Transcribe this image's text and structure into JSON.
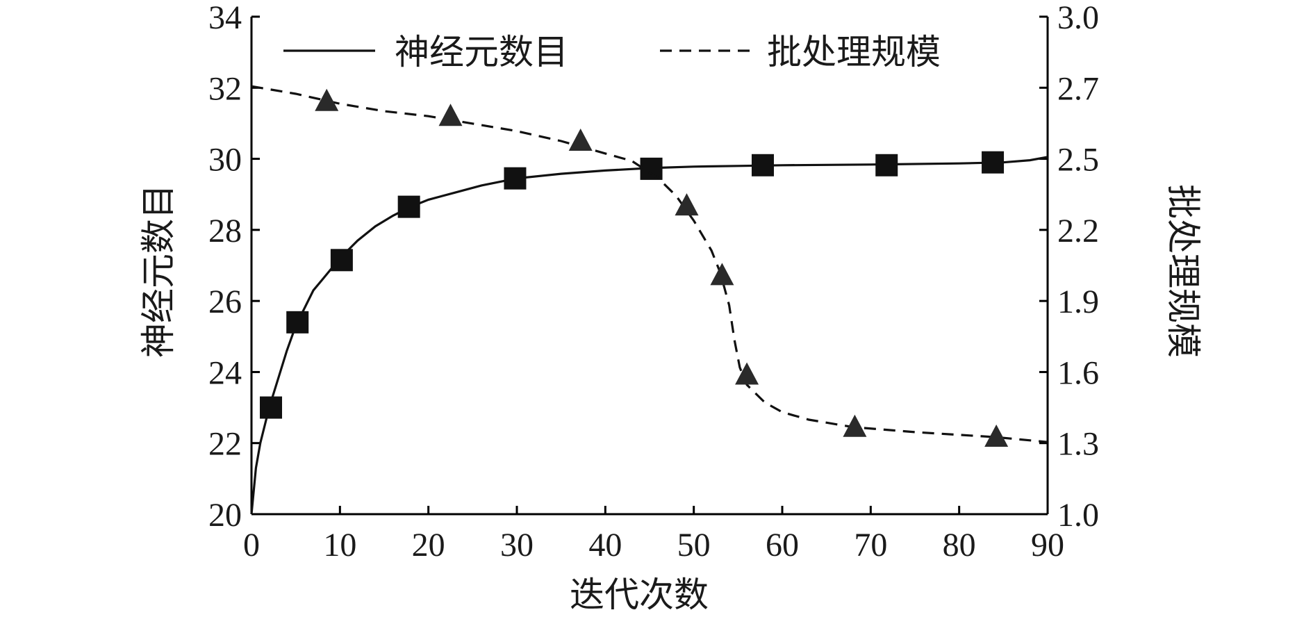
{
  "chart_data": {
    "type": "line",
    "xlabel": "迭代次数",
    "ylabel_left": "神经元数目",
    "ylabel_right": "批处理规模",
    "xlim": [
      0,
      90
    ],
    "ylim_left": [
      20,
      34
    ],
    "ylim_right": [
      1.0,
      3.0
    ],
    "x_ticks": [
      0,
      10,
      20,
      30,
      40,
      50,
      60,
      70,
      80,
      90
    ],
    "y_left_ticks": [
      20,
      22,
      24,
      26,
      28,
      30,
      32,
      34
    ],
    "y_right_ticks": [
      "1.0",
      "1.3",
      "1.6",
      "1.9",
      "2.2",
      "2.5",
      "2.7",
      "3.0"
    ],
    "legend_position": "top",
    "grid": false,
    "series": [
      {
        "name": "神经元数目",
        "axis": "left",
        "style": "solid",
        "marker": "square",
        "color": "#111111",
        "curve": [
          [
            0,
            20.0
          ],
          [
            0.5,
            21.3
          ],
          [
            1,
            22.0
          ],
          [
            2,
            23.0
          ],
          [
            3,
            23.8
          ],
          [
            4,
            24.6
          ],
          [
            5,
            25.3
          ],
          [
            6,
            25.8
          ],
          [
            7,
            26.3
          ],
          [
            8,
            26.6
          ],
          [
            9,
            26.9
          ],
          [
            10,
            27.2
          ],
          [
            12,
            27.7
          ],
          [
            14,
            28.1
          ],
          [
            16,
            28.4
          ],
          [
            18,
            28.65
          ],
          [
            20,
            28.85
          ],
          [
            23,
            29.05
          ],
          [
            26,
            29.25
          ],
          [
            30,
            29.45
          ],
          [
            35,
            29.58
          ],
          [
            40,
            29.67
          ],
          [
            45,
            29.74
          ],
          [
            50,
            29.78
          ],
          [
            55,
            29.8
          ],
          [
            60,
            29.82
          ],
          [
            70,
            29.84
          ],
          [
            80,
            29.87
          ],
          [
            85,
            29.9
          ],
          [
            88,
            29.96
          ],
          [
            90,
            30.05
          ]
        ],
        "markers": [
          [
            2.2,
            23.0
          ],
          [
            5.2,
            25.4
          ],
          [
            10.2,
            27.15
          ],
          [
            17.8,
            28.65
          ],
          [
            29.8,
            29.45
          ],
          [
            45.2,
            29.72
          ],
          [
            57.8,
            29.82
          ],
          [
            71.8,
            29.82
          ],
          [
            83.8,
            29.9
          ]
        ]
      },
      {
        "name": "批处理规模",
        "axis": "right",
        "style": "dashed",
        "marker": "triangle",
        "color": "#111111",
        "curve": [
          [
            0,
            2.72
          ],
          [
            5,
            2.69
          ],
          [
            10,
            2.65
          ],
          [
            15,
            2.62
          ],
          [
            20,
            2.6
          ],
          [
            25,
            2.57
          ],
          [
            30,
            2.54
          ],
          [
            35,
            2.5
          ],
          [
            40,
            2.45
          ],
          [
            43,
            2.42
          ],
          [
            46,
            2.35
          ],
          [
            48,
            2.28
          ],
          [
            50,
            2.18
          ],
          [
            52,
            2.06
          ],
          [
            53,
            1.97
          ],
          [
            54,
            1.84
          ],
          [
            54.6,
            1.7
          ],
          [
            55.2,
            1.59
          ],
          [
            56,
            1.52
          ],
          [
            58,
            1.45
          ],
          [
            60,
            1.41
          ],
          [
            63,
            1.38
          ],
          [
            68,
            1.35
          ],
          [
            75,
            1.33
          ],
          [
            84,
            1.31
          ],
          [
            90,
            1.29
          ]
        ],
        "markers": [
          [
            8.5,
            2.66
          ],
          [
            22.5,
            2.6
          ],
          [
            37.2,
            2.5
          ],
          [
            49.2,
            2.24
          ],
          [
            53.2,
            1.96
          ],
          [
            56.0,
            1.56
          ],
          [
            68.2,
            1.35
          ],
          [
            84.2,
            1.31
          ]
        ]
      }
    ]
  }
}
